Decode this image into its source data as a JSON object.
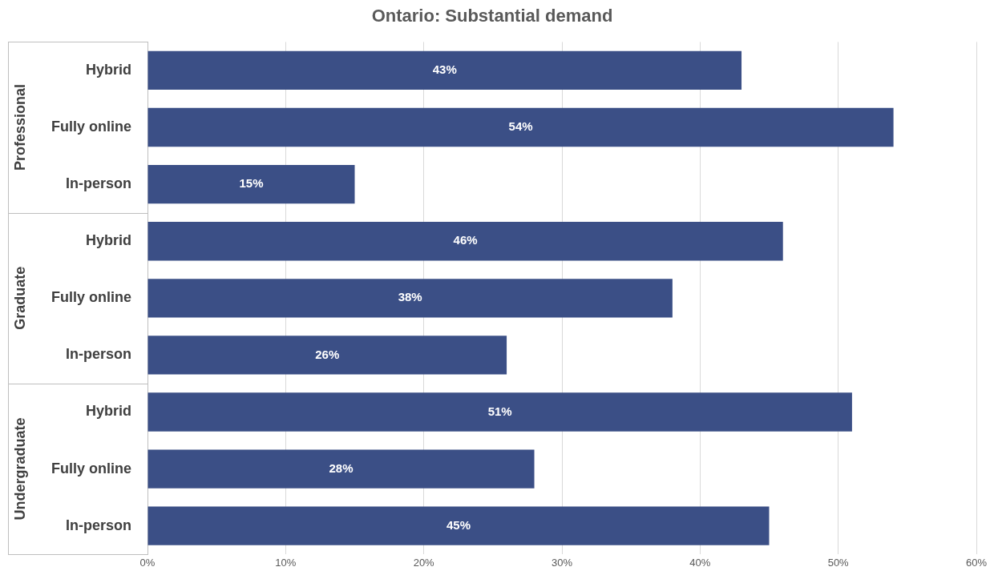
{
  "chart_data": {
    "type": "bar",
    "orientation": "horizontal",
    "title": "Ontario: Substantial demand",
    "categories": [
      "Hybrid",
      "Fully online",
      "In-person",
      "Hybrid",
      "Fully online",
      "In-person",
      "Hybrid",
      "Fully online",
      "In-person"
    ],
    "values": [
      43,
      54,
      15,
      46,
      38,
      26,
      51,
      28,
      45
    ],
    "value_labels": [
      "43%",
      "54%",
      "15%",
      "46%",
      "38%",
      "26%",
      "51%",
      "28%",
      "45%"
    ],
    "color": "#3b4f86",
    "xlim": [
      0,
      60
    ],
    "xticks": [
      {
        "value": 0,
        "label": "0%"
      },
      {
        "value": 10,
        "label": "10%"
      },
      {
        "value": 20,
        "label": "20%"
      },
      {
        "value": 30,
        "label": "30%"
      },
      {
        "value": 40,
        "label": "40%"
      },
      {
        "value": 50,
        "label": "50%"
      },
      {
        "value": 60,
        "label": "60%"
      }
    ],
    "grid": "x",
    "annotations": [
      "Professional",
      "Graduate",
      "Undergraduate"
    ]
  }
}
